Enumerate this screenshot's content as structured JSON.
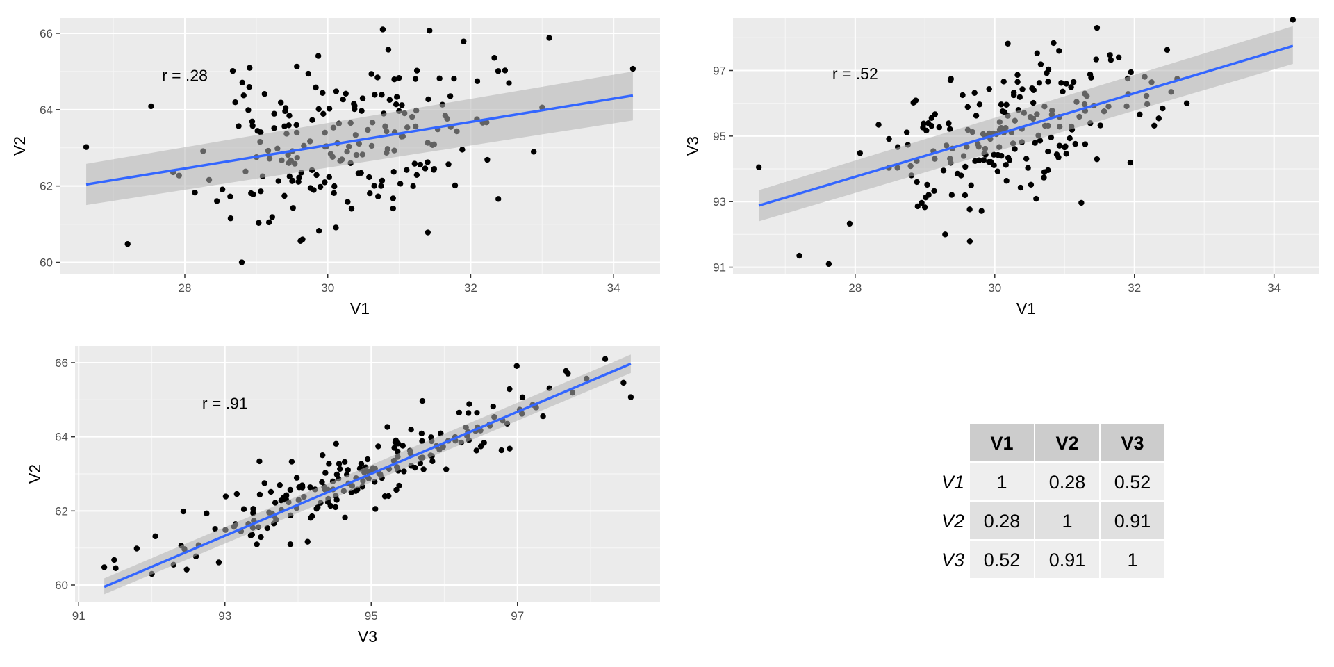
{
  "chart_data": [
    {
      "type": "scatter",
      "title": "",
      "xlabel": "V1",
      "ylabel": "V2",
      "xlim": [
        26.25,
        34.65
      ],
      "ylim": [
        59.7,
        66.4
      ],
      "xticks": [
        28,
        30,
        32,
        34
      ],
      "yticks": [
        60,
        62,
        64,
        66
      ],
      "annotation": "r = .28",
      "annotation_pos": [
        28.0,
        64.9
      ],
      "fit": {
        "x": [
          26.62,
          34.27
        ],
        "y": [
          62.04,
          64.37
        ],
        "ci_lo": [
          61.5,
          63.72
        ],
        "ci_hi": [
          62.58,
          65.0
        ]
      },
      "grid": true,
      "seed": 11,
      "n_points": 200,
      "cloud": {
        "mx": 30.2,
        "sx": 1.0,
        "my": 63.1,
        "sy": 1.1,
        "r": 0.28
      },
      "outliers": [
        [
          26.62,
          63.02
        ],
        [
          27.2,
          60.48
        ],
        [
          34.27,
          65.07
        ],
        [
          30.77,
          66.1
        ]
      ]
    },
    {
      "type": "scatter",
      "title": "",
      "xlabel": "V1",
      "ylabel": "V3",
      "xlim": [
        26.25,
        34.65
      ],
      "ylim": [
        90.8,
        98.6
      ],
      "xticks": [
        28,
        30,
        32,
        34
      ],
      "yticks": [
        91,
        93,
        95,
        97
      ],
      "annotation": "r = .52",
      "annotation_pos": [
        28.0,
        96.9
      ],
      "fit": {
        "x": [
          26.62,
          34.27
        ],
        "y": [
          92.88,
          97.75
        ],
        "ci_lo": [
          92.4,
          97.2
        ],
        "ci_hi": [
          93.35,
          98.35
        ]
      },
      "grid": true,
      "seed": 23,
      "n_points": 200,
      "cloud": {
        "mx": 30.2,
        "sx": 1.0,
        "my": 95.0,
        "sy": 1.3,
        "r": 0.52
      },
      "outliers": [
        [
          26.62,
          94.05
        ],
        [
          27.2,
          91.35
        ],
        [
          34.27,
          98.55
        ],
        [
          32.75,
          96.0
        ]
      ]
    },
    {
      "type": "scatter",
      "title": "",
      "xlabel": "V3",
      "ylabel": "V2",
      "xlim": [
        90.95,
        98.95
      ],
      "ylim": [
        59.55,
        66.45
      ],
      "xticks": [
        91,
        93,
        95,
        97
      ],
      "yticks": [
        60,
        62,
        64,
        66
      ],
      "annotation": "r = .91",
      "annotation_pos": [
        93.0,
        64.9
      ],
      "fit": {
        "x": [
          91.35,
          98.55
        ],
        "y": [
          59.95,
          65.97
        ],
        "ci_lo": [
          59.75,
          65.72
        ],
        "ci_hi": [
          60.18,
          66.22
        ]
      },
      "grid": true,
      "seed": 37,
      "n_points": 200,
      "cloud": {
        "mx": 95.0,
        "sx": 1.3,
        "my": 63.1,
        "sy": 1.1,
        "r": 0.91
      },
      "outliers": [
        [
          91.35,
          60.48
        ],
        [
          98.55,
          65.07
        ],
        [
          98.2,
          66.1
        ],
        [
          92.0,
          60.3
        ]
      ]
    },
    {
      "type": "table",
      "columns": [
        "V1",
        "V2",
        "V3"
      ],
      "rows": [
        {
          "label": "V1",
          "values": [
            "1",
            "0.28",
            "0.52"
          ]
        },
        {
          "label": "V2",
          "values": [
            "0.28",
            "1",
            "0.91"
          ]
        },
        {
          "label": "V3",
          "values": [
            "0.52",
            "0.91",
            "1"
          ]
        }
      ]
    }
  ],
  "colors": {
    "panel_bg": "#ebebeb",
    "grid_major": "#ffffff",
    "grid_minor": "#f5f5f5",
    "point": "#000000",
    "fit_line": "#3366ff",
    "ribbon": "#b3b3b3",
    "table_header": "#cccccc",
    "table_row_dark": "#e0e0e0",
    "table_row_light": "#eeeeee"
  }
}
